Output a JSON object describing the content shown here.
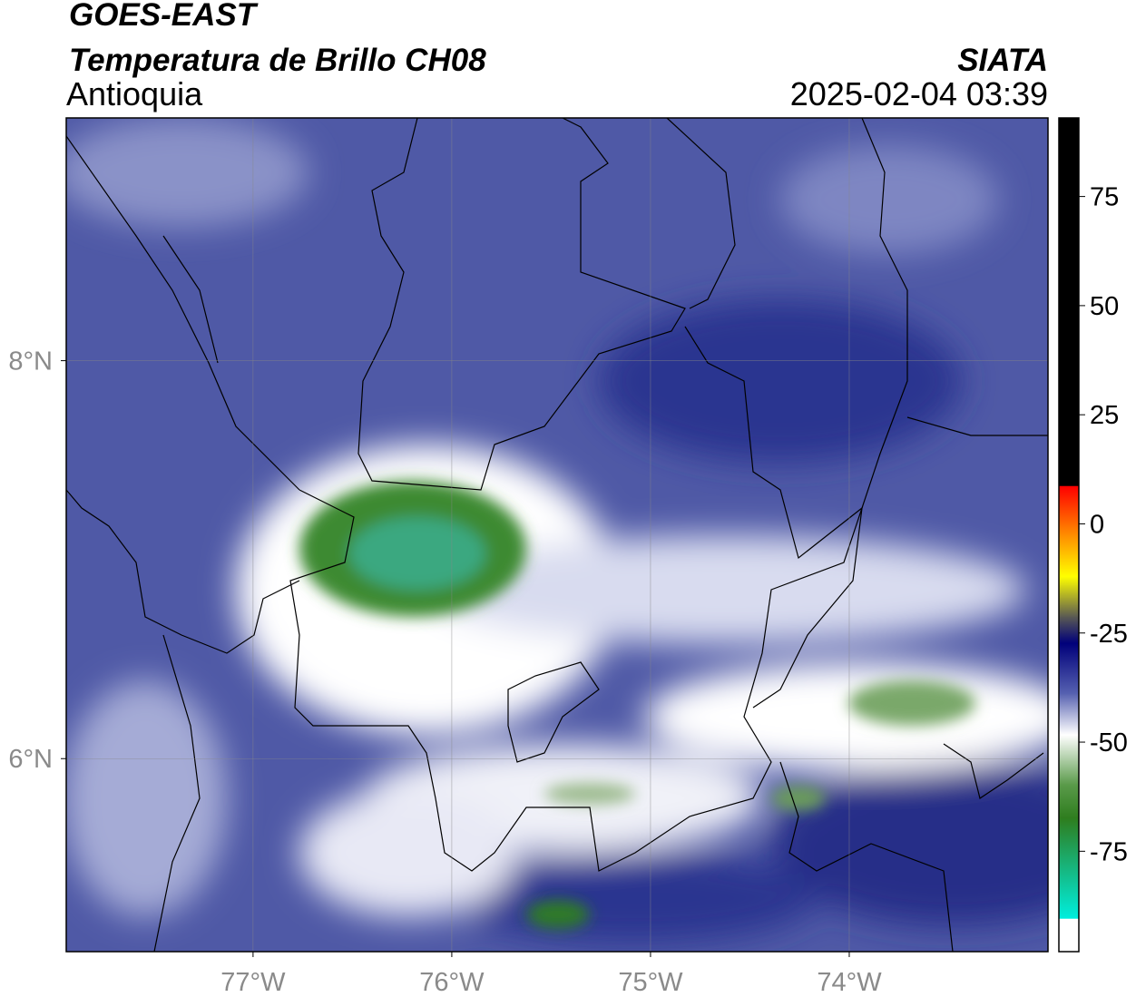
{
  "header": {
    "title": "GOES-EAST",
    "subtitle": "Temperatura de Brillo CH08",
    "region": "Antioquia",
    "source": "SIATA",
    "datetime": "2025-02-04 03:39"
  },
  "map": {
    "xlim": [
      -77.94,
      -73.0
    ],
    "ylim": [
      5.03,
      9.22
    ],
    "grid": true,
    "xticks": [
      {
        "value": -77,
        "label": "77°W"
      },
      {
        "value": -76,
        "label": "76°W"
      },
      {
        "value": -75,
        "label": "75°W"
      },
      {
        "value": -74,
        "label": "74°W"
      }
    ],
    "yticks": [
      {
        "value": 6,
        "label": "6°N"
      },
      {
        "value": 8,
        "label": "8°N"
      }
    ]
  },
  "colorbar": {
    "lim": [
      -98,
      93
    ],
    "ticks": [
      75,
      50,
      25,
      0,
      -25,
      -50,
      -75
    ]
  }
}
